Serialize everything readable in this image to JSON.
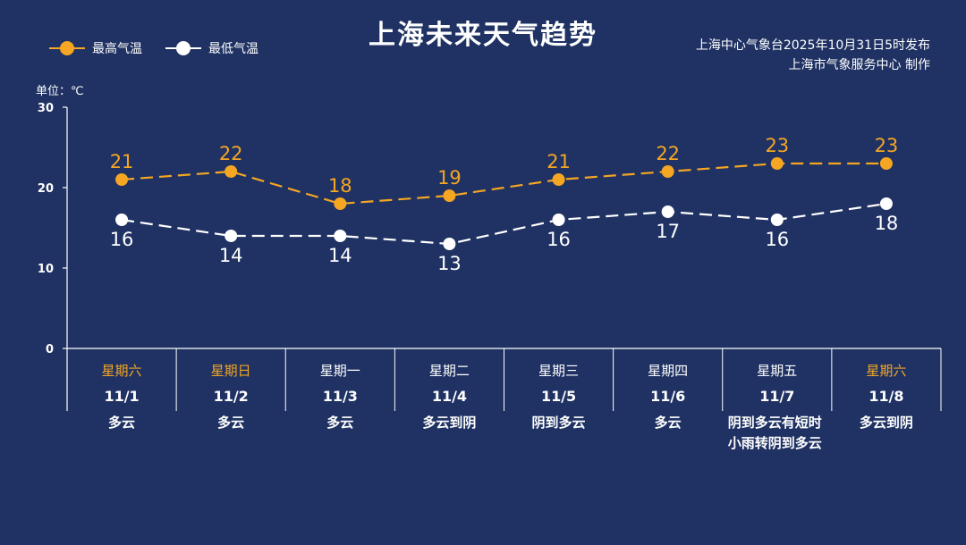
{
  "header": {
    "title": "上海未来天气趋势",
    "source_line1": "上海中心气象台2025年10月31日5时发布",
    "source_line2": "上海市气象服务中心  制作",
    "unit_label": "单位：℃"
  },
  "colors": {
    "background": "#1f3263",
    "high": "#f5a623",
    "low": "#ffffff",
    "weekend_label": "#f5a623",
    "weekday_label": "#ffffff"
  },
  "chart_data": {
    "type": "line",
    "categories": [
      "11/1",
      "11/2",
      "11/3",
      "11/4",
      "11/5",
      "11/6",
      "11/7",
      "11/8"
    ],
    "weekdays": [
      "星期六",
      "星期日",
      "星期一",
      "星期二",
      "星期三",
      "星期四",
      "星期五",
      "星期六"
    ],
    "weekend": [
      true,
      true,
      false,
      false,
      false,
      false,
      false,
      true
    ],
    "weather": [
      "多云",
      "多云",
      "多云",
      "多云到阴",
      "阴到多云",
      "多云",
      "阴到多云有短时小雨转阴到多云",
      "多云到阴"
    ],
    "series": [
      {
        "name": "最高气温",
        "values": [
          21,
          22,
          18,
          19,
          21,
          22,
          23,
          23
        ],
        "color": "#f5a623"
      },
      {
        "name": "最低气温",
        "values": [
          16,
          14,
          14,
          13,
          16,
          17,
          16,
          18
        ],
        "color": "#ffffff"
      }
    ],
    "yticks": [
      0,
      10,
      20,
      30
    ],
    "ylim": [
      0,
      30
    ],
    "legend": "top-left",
    "grid": false
  }
}
